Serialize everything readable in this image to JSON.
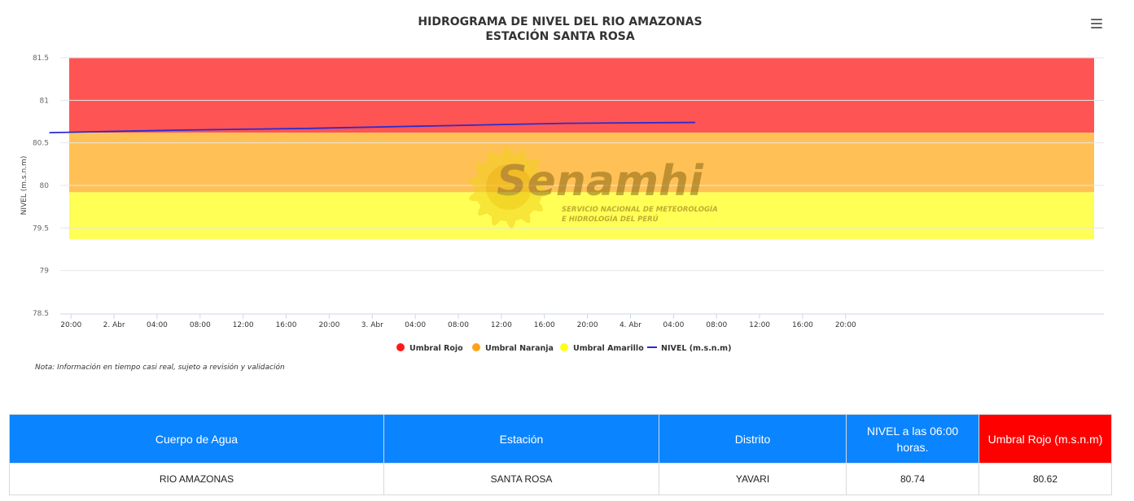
{
  "chart_data": {
    "type": "line",
    "title": "HIDROGRAMA DE NIVEL DEL RIO AMAZONAS",
    "subtitle": "ESTACIÓN SANTA ROSA",
    "ylabel": "NIVEL (m.s.n.m)",
    "ylim": [
      78.5,
      81.5
    ],
    "yticks": [
      "81.5",
      "81",
      "80.5",
      "80",
      "79.5",
      "79",
      "78.5"
    ],
    "xlim_hours": [
      -5,
      92
    ],
    "xticks": [
      "20:00",
      "2. Abr",
      "04:00",
      "08:00",
      "12:00",
      "16:00",
      "20:00",
      "3. Abr",
      "04:00",
      "08:00",
      "12:00",
      "16:00",
      "20:00",
      "4. Abr",
      "04:00",
      "08:00",
      "12:00",
      "16:00",
      "20:00"
    ],
    "bands": [
      {
        "name": "Umbral Rojo",
        "from": 80.62,
        "to": 81.5,
        "color": "#ff5454"
      },
      {
        "name": "Umbral Naranja",
        "from": 79.92,
        "to": 80.62,
        "color": "#ffc155"
      },
      {
        "name": "Umbral Amarillo",
        "from": 79.37,
        "to": 79.92,
        "color": "#ffff55"
      }
    ],
    "series": [
      {
        "name": "NIVEL (m.s.n.m)",
        "color": "#2b2bcc",
        "x": [
          "2025-04-01 18:00",
          "2025-04-02 06:00",
          "2025-04-02 18:00",
          "2025-04-03 06:00",
          "2025-04-03 18:00",
          "2025-04-04 06:00"
        ],
        "x_hours": [
          -6,
          6,
          18,
          30,
          42,
          54
        ],
        "values": [
          80.62,
          80.65,
          80.67,
          80.7,
          80.73,
          80.74
        ]
      }
    ],
    "legend": {
      "placement": "bottom-center",
      "items": [
        {
          "label": "Umbral Rojo",
          "color": "#ff1a1a",
          "kind": "circle"
        },
        {
          "label": "Umbral Naranja",
          "color": "#ffa31a",
          "kind": "circle"
        },
        {
          "label": "Umbral Amarillo",
          "color": "#ffff1a",
          "kind": "circle"
        },
        {
          "label": "NIVEL (m.s.n.m)",
          "color": "#2b2bcc",
          "kind": "line"
        }
      ]
    },
    "grid": true
  },
  "watermark": {
    "brand": "Senamhi",
    "line1": "SERVICIO NACIONAL DE METEOROLOGÍA",
    "line2": "E HIDROLOGÍA DEL PERÚ"
  },
  "note": "Nota: Información en tiempo casi real, sujeto a revisión y validación",
  "menu_icon": "hamburger-menu-icon",
  "table": {
    "headers": [
      "Cuerpo de Agua",
      "Estación",
      "Distrito",
      "NIVEL a las 06:00 horas.",
      "Umbral Rojo (m.s.n.m)"
    ],
    "header_colors": [
      "#0a84ff",
      "#0a84ff",
      "#0a84ff",
      "#0a84ff",
      "#ff0000"
    ],
    "row": [
      "RIO AMAZONAS",
      "SANTA ROSA",
      "YAVARI",
      "80.74",
      "80.62"
    ]
  }
}
